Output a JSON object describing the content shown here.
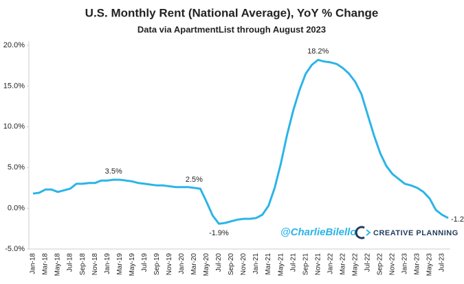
{
  "chart_data": {
    "type": "line",
    "title": "U.S. Monthly Rent (National Average), YoY % Change",
    "subtitle": "Data via ApartmentList through August 2023",
    "watermark": [
      "@CharlieBilello",
      "CREATIVE PLANNING"
    ],
    "categories": [
      "Jan-18",
      null,
      "Mar-18",
      null,
      "May-18",
      null,
      "Jul-18",
      null,
      "Sep-18",
      null,
      "Nov-18",
      null,
      "Jan-19",
      null,
      "Mar-19",
      null,
      "May-19",
      null,
      "Jul-19",
      null,
      "Sep-19",
      null,
      "Nov-19",
      null,
      "Jan-20",
      null,
      "Mar-20",
      null,
      "May-20",
      null,
      "Jul-20",
      null,
      "Sep-20",
      null,
      "Nov-20",
      null,
      "Jan-21",
      null,
      "Mar-21",
      null,
      "May-21",
      null,
      "Jul-21",
      null,
      "Sep-21",
      null,
      "Nov-21",
      null,
      "Jan-22",
      null,
      "Mar-22",
      null,
      "May-22",
      null,
      "Jul-22",
      null,
      "Sep-22",
      null,
      "Nov-22",
      null,
      "Jan-23",
      null,
      "Mar-23",
      null,
      "May-23",
      null,
      "Jul-23",
      null
    ],
    "series": [
      {
        "name": "YoY % Change",
        "color": "#2bb4e8",
        "values": [
          1.8,
          1.9,
          2.3,
          2.3,
          2.0,
          2.2,
          2.4,
          3.0,
          3.0,
          3.1,
          3.1,
          3.4,
          3.4,
          3.5,
          3.5,
          3.4,
          3.3,
          3.1,
          3.0,
          2.9,
          2.8,
          2.8,
          2.7,
          2.6,
          2.6,
          2.6,
          2.5,
          2.4,
          0.8,
          -0.9,
          -1.9,
          -1.8,
          -1.6,
          -1.4,
          -1.3,
          -1.3,
          -1.2,
          -0.8,
          0.3,
          2.5,
          5.5,
          9.0,
          12.0,
          14.5,
          16.5,
          17.6,
          18.2,
          18.0,
          17.9,
          17.7,
          17.2,
          16.5,
          15.5,
          14.0,
          11.5,
          9.0,
          6.8,
          5.2,
          4.2,
          3.6,
          3.0,
          2.8,
          2.5,
          2.0,
          1.2,
          -0.2,
          -0.8,
          -1.2
        ],
        "value_labels": [
          null,
          null,
          null,
          null,
          null,
          null,
          null,
          null,
          null,
          null,
          null,
          null,
          null,
          "3.5%",
          null,
          null,
          null,
          null,
          null,
          null,
          null,
          null,
          null,
          null,
          null,
          null,
          "2.5%",
          null,
          null,
          null,
          "-1.9%",
          null,
          null,
          null,
          null,
          null,
          null,
          null,
          null,
          null,
          null,
          null,
          null,
          null,
          null,
          null,
          "18.2%",
          null,
          null,
          null,
          null,
          null,
          null,
          null,
          null,
          null,
          null,
          null,
          null,
          null,
          null,
          null,
          null,
          null,
          null,
          null,
          null,
          "-1.2%"
        ]
      }
    ],
    "ylim": [
      -5,
      20.5
    ],
    "yticks": [
      {
        "value": -5,
        "label": "-5.0%"
      },
      {
        "value": 0,
        "label": "0.0%"
      },
      {
        "value": 5,
        "label": "5.0%"
      },
      {
        "value": 10,
        "label": "10.0%"
      },
      {
        "value": 15,
        "label": "15.0%"
      },
      {
        "value": 20,
        "label": "20.0%"
      }
    ],
    "grid": false
  }
}
